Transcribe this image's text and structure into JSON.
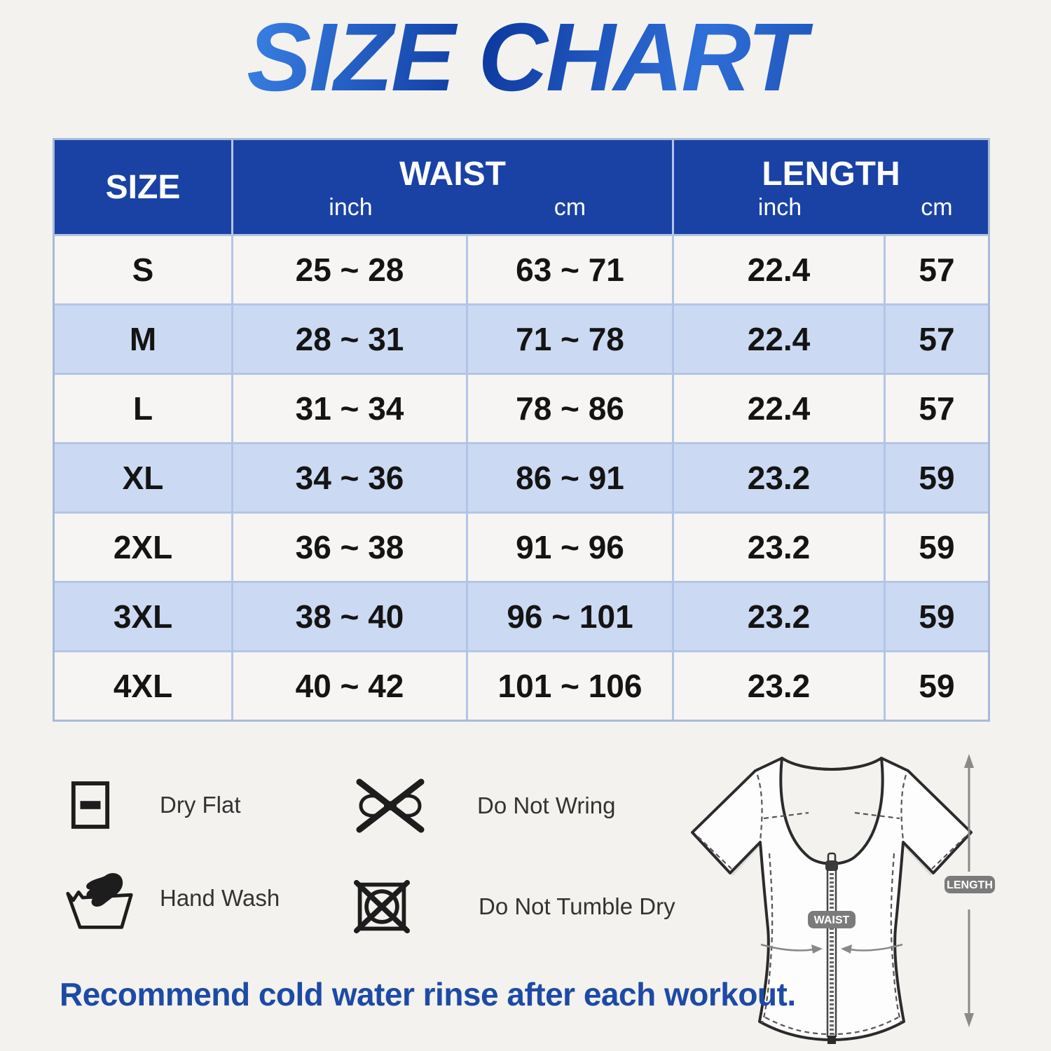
{
  "title": "SIZE CHART",
  "chart_data": {
    "type": "table",
    "title": "SIZE CHART",
    "column_groups": [
      {
        "label": "SIZE",
        "span": 1
      },
      {
        "label": "WAIST",
        "span": 2,
        "units": [
          "inch",
          "cm"
        ]
      },
      {
        "label": "LENGTH",
        "span": 2,
        "units": [
          "inch",
          "cm"
        ]
      }
    ],
    "rows": [
      [
        "S",
        "25 ~ 28",
        "63 ~ 71",
        "22.4",
        "57"
      ],
      [
        "M",
        "28 ~ 31",
        "71 ~ 78",
        "22.4",
        "57"
      ],
      [
        "L",
        "31 ~ 34",
        "78 ~ 86",
        "22.4",
        "57"
      ],
      [
        "XL",
        "34 ~ 36",
        "86 ~ 91",
        "23.2",
        "59"
      ],
      [
        "2XL",
        "36 ~ 38",
        "91 ~ 96",
        "23.2",
        "59"
      ],
      [
        "3XL",
        "38 ~ 40",
        "96 ~ 101",
        "23.2",
        "59"
      ],
      [
        "4XL",
        "40 ~ 42",
        "101 ~ 106",
        "23.2",
        "59"
      ]
    ]
  },
  "care_instructions": [
    {
      "icon": "dry-flat-icon",
      "label": "Dry Flat"
    },
    {
      "icon": "do-not-wring-icon",
      "label": "Do Not Wring"
    },
    {
      "icon": "hand-wash-icon",
      "label": "Hand Wash"
    },
    {
      "icon": "do-not-tumble-dry-icon",
      "label": "Do Not Tumble Dry"
    }
  ],
  "diagram": {
    "waist_label": "WAIST",
    "length_label": "LENGTH"
  },
  "footer_note": "Recommend cold water rinse after each workout.",
  "colors": {
    "header_bg": "#1a42a4",
    "row_bg": "#f6f5f3",
    "row_alt_bg": "#ccd9f2",
    "grid_border": "#b3c5e6",
    "page_bg": "#f3f2ef",
    "title_blue_dark": "#123f9f",
    "title_blue_light": "#3c85e8",
    "footer_text": "#1d4aa5",
    "badge_gray": "#7b7b7b"
  }
}
